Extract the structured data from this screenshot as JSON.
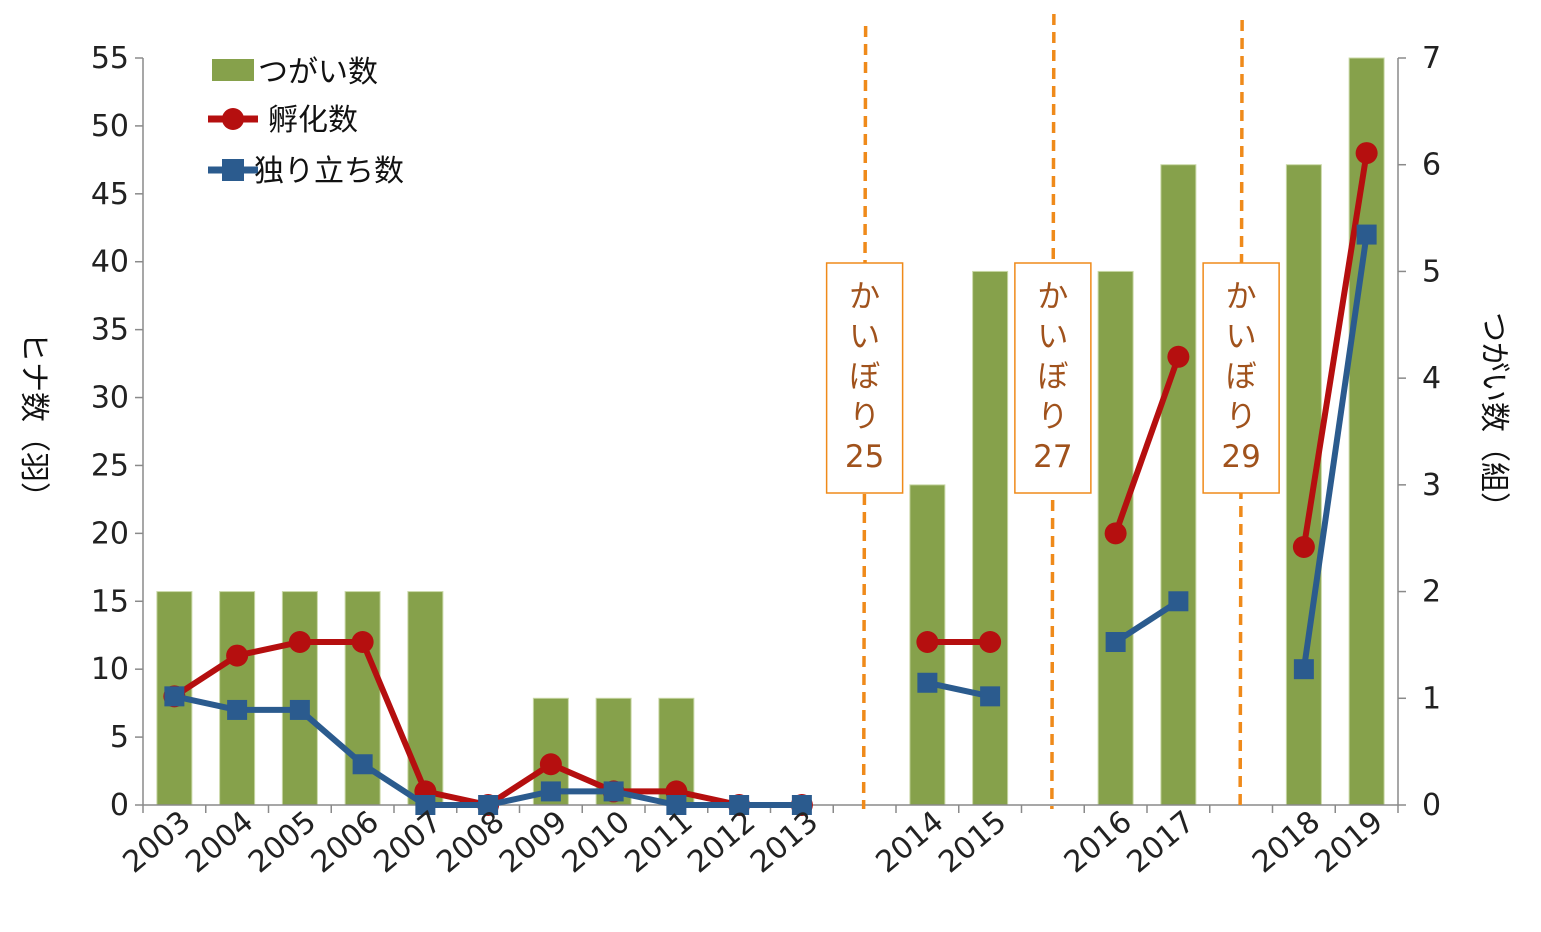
{
  "chart_data": {
    "type": "bar+line",
    "categories": [
      "2003",
      "2004",
      "2005",
      "2006",
      "2007",
      "2008",
      "2009",
      "2010",
      "2011",
      "2012",
      "2013",
      "",
      "2014",
      "2015",
      "",
      "2016",
      "2017",
      "",
      "2018",
      "2019"
    ],
    "bars": {
      "name": "つがい数",
      "axis": "right",
      "values": [
        2,
        2,
        2,
        2,
        2,
        0,
        1,
        1,
        1,
        0,
        0,
        null,
        3,
        5,
        null,
        5,
        6,
        null,
        6,
        7
      ]
    },
    "series": [
      {
        "name": "孵化数",
        "axis": "left",
        "marker": "circle",
        "values": [
          8,
          11,
          12,
          12,
          1,
          0,
          3,
          1,
          1,
          0,
          0,
          null,
          12,
          12,
          null,
          20,
          33,
          null,
          19,
          48
        ]
      },
      {
        "name": "独り立ち数",
        "axis": "left",
        "marker": "square",
        "values": [
          8,
          7,
          7,
          3,
          0,
          0,
          1,
          1,
          0,
          0,
          0,
          null,
          9,
          8,
          null,
          12,
          15,
          null,
          10,
          42
        ]
      }
    ],
    "ylabel_left": "ヒナ数（羽）",
    "ylabel_right": "つがい数（組）",
    "ylim_left": [
      0,
      55
    ],
    "yticks_left": [
      0,
      5,
      10,
      15,
      20,
      25,
      30,
      35,
      40,
      45,
      50,
      55
    ],
    "ylim_right": [
      0,
      7
    ],
    "yticks_right": [
      0,
      1,
      2,
      3,
      4,
      5,
      6,
      7
    ],
    "legend_position": "top-left",
    "colors": {
      "bars": "#86a14b",
      "hatch": "#b50f0f",
      "fledge": "#2b5b8e",
      "event": "#ef8a1a",
      "event_text": "#a0521c"
    },
    "annotations": [
      {
        "after_category": "2013",
        "lines": [
          "か",
          "い",
          "ぼ",
          "り",
          "25"
        ]
      },
      {
        "after_category": "2015",
        "lines": [
          "か",
          "い",
          "ぼ",
          "り",
          "27"
        ]
      },
      {
        "after_category": "2017",
        "lines": [
          "か",
          "い",
          "ぼ",
          "り",
          "29"
        ]
      }
    ]
  }
}
